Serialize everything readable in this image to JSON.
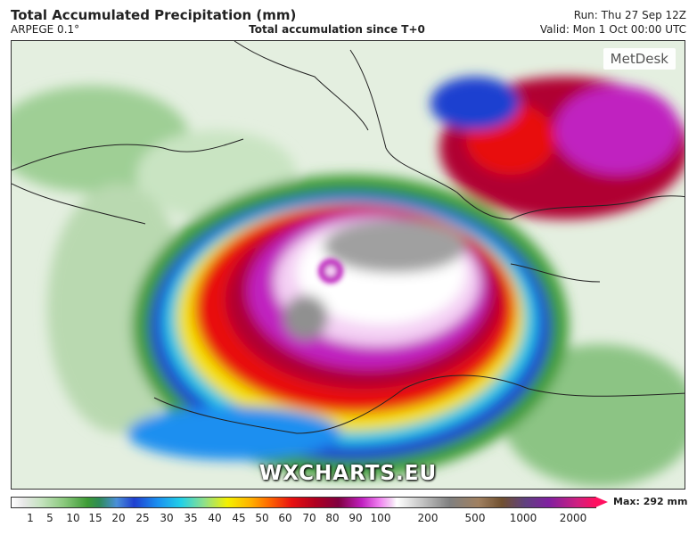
{
  "header": {
    "title": "Total Accumulated Precipitation (mm)",
    "model": "ARPEGE 0.1°",
    "subtitle": "Total accumulation since T+0",
    "run": "Run: Thu 27 Sep 12Z",
    "valid": "Valid: Mon 1 Oct 00:00 UTC"
  },
  "map": {
    "logo": "MetDesk",
    "watermark": "WXCHARTS.EU"
  },
  "colorbar": {
    "labels": [
      "1",
      "5",
      "10",
      "15",
      "20",
      "25",
      "30",
      "35",
      "40",
      "45",
      "50",
      "60",
      "70",
      "80",
      "90",
      "100",
      "200",
      "500",
      "1000",
      "2000"
    ],
    "max": "Max: 292 mm"
  }
}
